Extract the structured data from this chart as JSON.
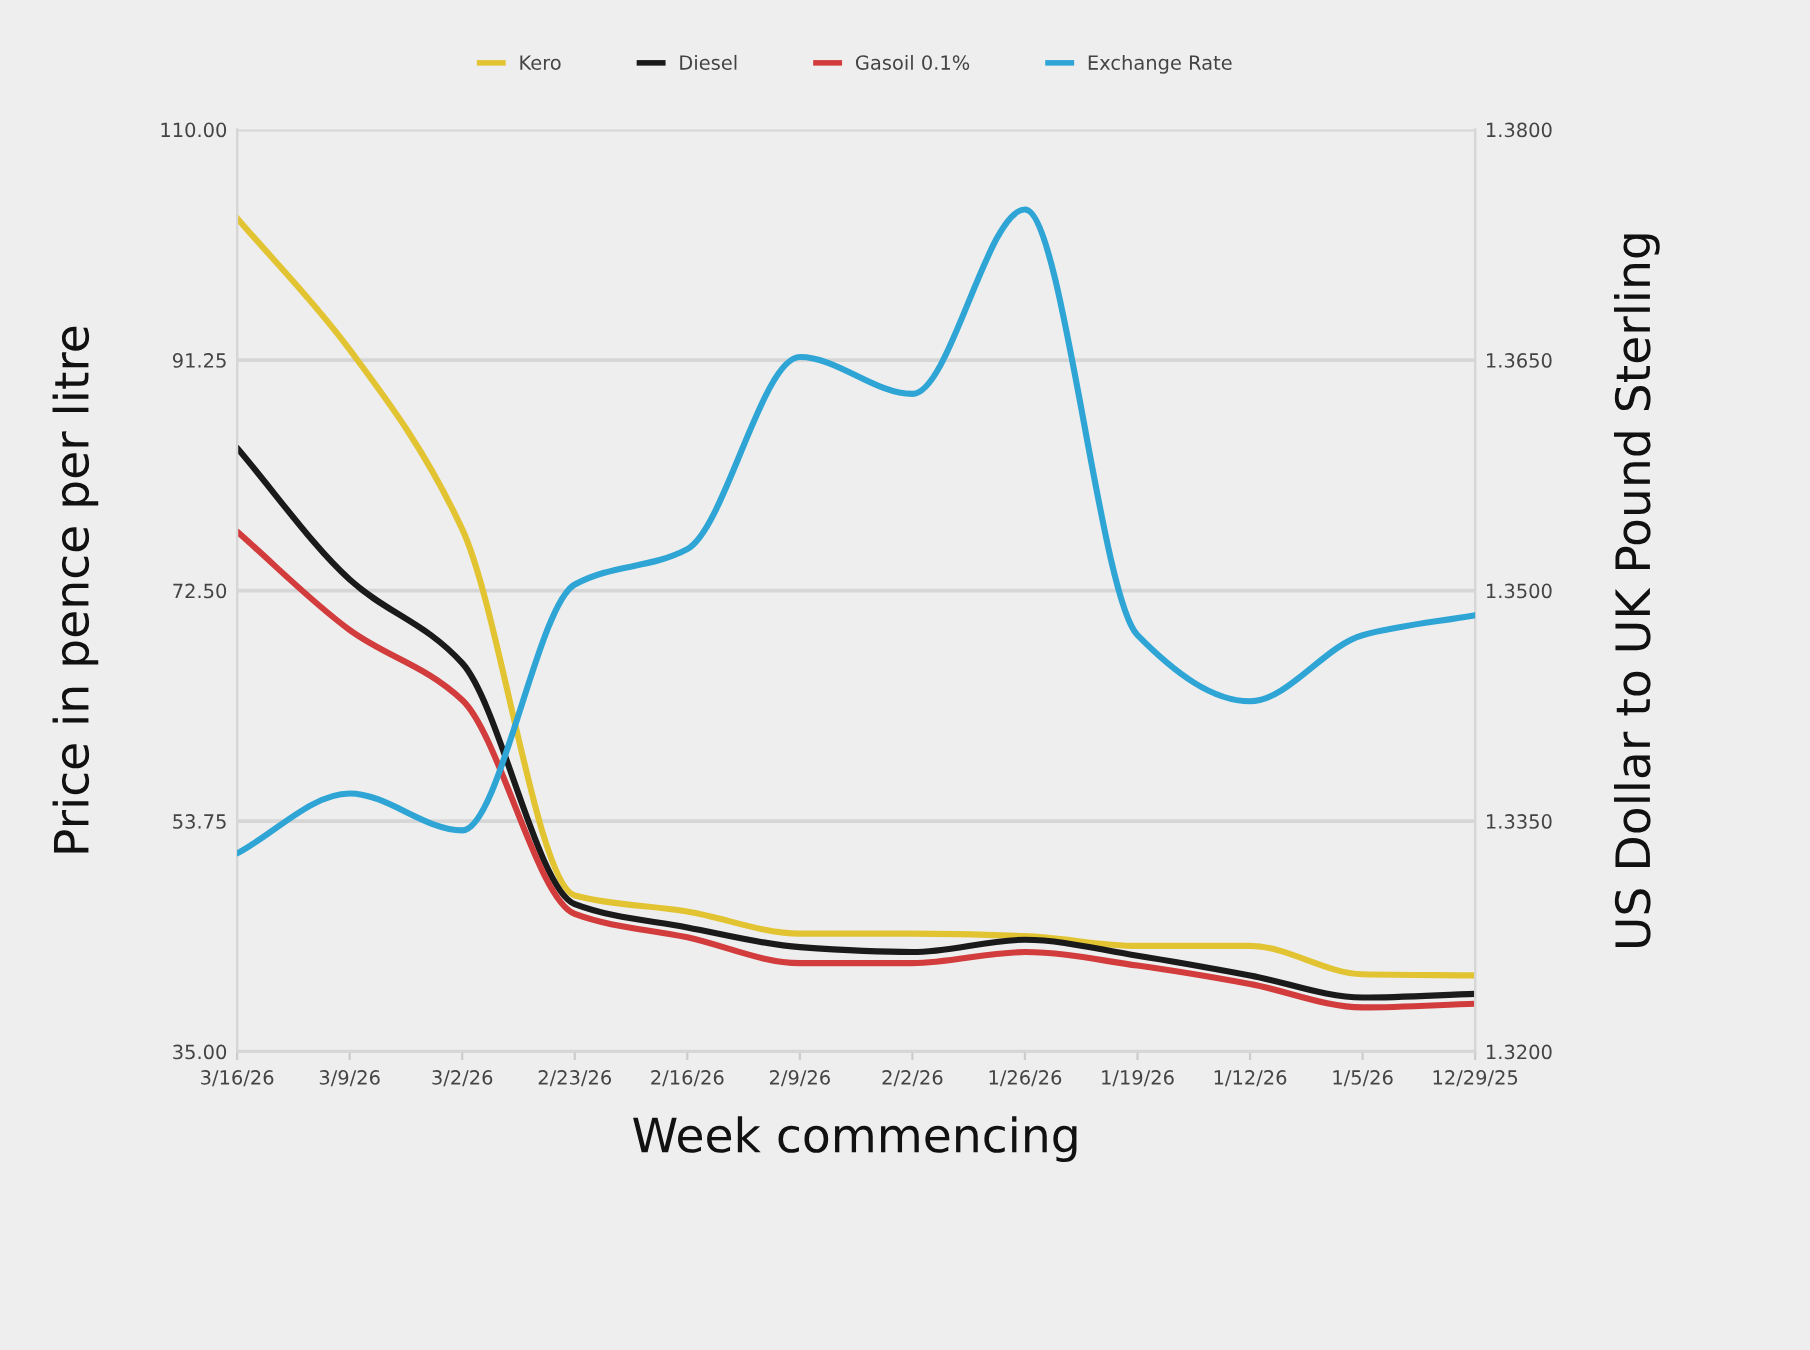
{
  "chart_data": {
    "type": "line",
    "xlabel": "Week commencing",
    "ylabel": "Price in pence per litre",
    "y2label": "US Dollar to UK Pound Sterling",
    "categories": [
      "3/16/26",
      "3/9/26",
      "3/2/26",
      "2/23/26",
      "2/16/26",
      "2/9/26",
      "2/2/26",
      "1/26/26",
      "1/19/26",
      "1/12/26",
      "1/5/26",
      "12/29/25"
    ],
    "series": [
      {
        "name": "Kero",
        "color": "#e2c433",
        "values": [
          102.8,
          92.1,
          77.5,
          47.7,
          46.4,
          44.6,
          44.6,
          44.4,
          43.6,
          43.6,
          41.3,
          41.2
        ]
      },
      {
        "name": "Diesel",
        "color": "#1a1a1a",
        "values": [
          84.1,
          73.4,
          66.6,
          47.0,
          45.1,
          43.5,
          43.1,
          44.1,
          42.8,
          41.2,
          39.4,
          39.7
        ]
      },
      {
        "name": "Gasoil 0.1%",
        "color": "#d23c3c",
        "values": [
          77.3,
          69.3,
          63.6,
          46.2,
          44.3,
          42.2,
          42.2,
          43.1,
          42.0,
          40.5,
          38.6,
          38.9
        ]
      },
      {
        "name": "Exchange Rate",
        "color": "#2ea5d5",
        "axis": "y2",
        "values": [
          1.3329,
          1.3368,
          1.3344,
          1.3504,
          1.3527,
          1.3652,
          1.3628,
          1.3748,
          1.3471,
          1.3428,
          1.3471,
          1.3484
        ]
      }
    ],
    "ylim": [
      35,
      110
    ],
    "yticks": [
      {
        "value": 35,
        "label": "35.00"
      },
      {
        "value": 53.75,
        "label": "53.75"
      },
      {
        "value": 72.5,
        "label": "72.50"
      },
      {
        "value": 91.25,
        "label": "91.25"
      },
      {
        "value": 110,
        "label": "110.00"
      }
    ],
    "y2lim": [
      1.32,
      1.38
    ],
    "y2ticks": [
      {
        "value": 1.32,
        "label": "1.3200"
      },
      {
        "value": 1.335,
        "label": "1.3350"
      },
      {
        "value": 1.35,
        "label": "1.3500"
      },
      {
        "value": 1.365,
        "label": "1.3650"
      },
      {
        "value": 1.38,
        "label": "1.3800"
      }
    ],
    "grid": "y",
    "legend": "top",
    "line_style": "solid",
    "marker": "none"
  }
}
